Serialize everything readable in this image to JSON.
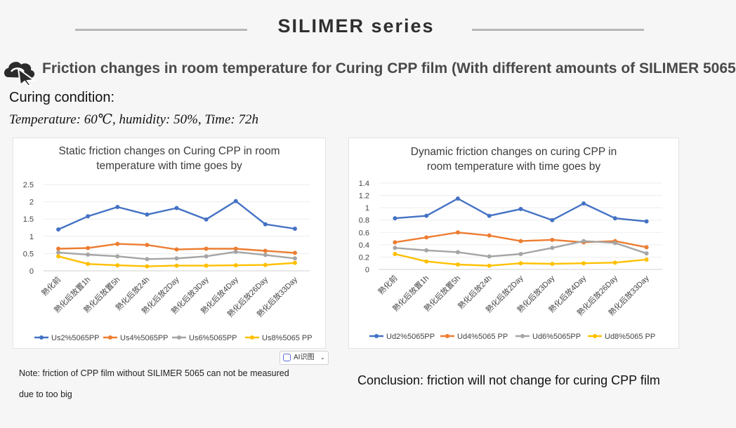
{
  "header": {
    "series_title": "SILIMER series"
  },
  "section": {
    "title": "Friction changes in room temperature for Curing CPP film (With different amounts of SILIMER 5065",
    "icon": "cursor-cloud-icon"
  },
  "curing": {
    "label": "Curing condition:",
    "condition": "Temperature: 60℃, humidity: 50%, Time: 72h"
  },
  "ai_chip": {
    "label": "AI识图",
    "caret": "⌄"
  },
  "notes": {
    "line1": "Note: friction of CPP film without SILIMER 5065 can not be measured",
    "line2": "due to too big"
  },
  "conclusion": "Conclusion: friction will not change for curing CPP film",
  "chart_data": [
    {
      "type": "line",
      "title": "Static friction changes on Curing CPP in room temperature with time goes by",
      "title_lines": [
        "Static friction changes on Curing CPP in room",
        "temperature with time goes by"
      ],
      "categories": [
        "熟化前",
        "熟化后放置1h",
        "熟化后放置5h",
        "熟化后放24h",
        "熟化后放2Day",
        "熟化后放3Day",
        "熟化后放4Day",
        "熟化后放26Day",
        "熟化后放33Day"
      ],
      "ylim": [
        0,
        2.5
      ],
      "yticks": [
        "0",
        "0.5",
        "1",
        "1.5",
        "2",
        "2.5"
      ],
      "series": [
        {
          "name": "Us2%5065PP",
          "color": "#4472c4",
          "values": [
            1.2,
            1.58,
            1.85,
            1.63,
            1.82,
            1.49,
            2.02,
            1.35,
            1.22
          ]
        },
        {
          "name": "Us4%5065PP",
          "color": "#ed7d31",
          "values": [
            0.64,
            0.66,
            0.78,
            0.75,
            0.62,
            0.64,
            0.64,
            0.58,
            0.52
          ]
        },
        {
          "name": "Us6%5065PP",
          "color": "#a5a5a5",
          "values": [
            0.53,
            0.47,
            0.42,
            0.34,
            0.36,
            0.42,
            0.55,
            0.46,
            0.36
          ]
        },
        {
          "name": "Us8%5065 PP",
          "color": "#ffc000",
          "values": [
            0.42,
            0.2,
            0.16,
            0.13,
            0.15,
            0.15,
            0.16,
            0.17,
            0.23
          ]
        }
      ]
    },
    {
      "type": "line",
      "title": "Dynamic friction changes on curing CPP in room temperature with time goes by",
      "title_lines": [
        "Dynamic friction changes on curing CPP in",
        "room temperature with time goes by"
      ],
      "categories": [
        "熟化前",
        "熟化后放置1h",
        "熟化后放置5h",
        "熟化后放24h",
        "熟化后放2Day",
        "熟化后放3Day",
        "熟化后放4Day",
        "熟化后放26Day",
        "熟化后放33Day"
      ],
      "ylim": [
        0,
        1.4
      ],
      "yticks": [
        "0",
        "0.2",
        "0.4",
        "0.6",
        "0.8",
        "1",
        "1.2",
        "1.4"
      ],
      "series": [
        {
          "name": "Ud2%5065PP",
          "color": "#4472c4",
          "values": [
            0.83,
            0.87,
            1.15,
            0.87,
            0.98,
            0.8,
            1.07,
            0.83,
            0.78
          ]
        },
        {
          "name": "Ud4%5065 PP",
          "color": "#ed7d31",
          "values": [
            0.44,
            0.52,
            0.6,
            0.55,
            0.46,
            0.48,
            0.44,
            0.46,
            0.36
          ]
        },
        {
          "name": "Ud6%5065PP",
          "color": "#a5a5a5",
          "values": [
            0.35,
            0.31,
            0.28,
            0.21,
            0.25,
            0.35,
            0.46,
            0.43,
            0.26
          ]
        },
        {
          "name": "Ud8%5065 PP",
          "color": "#ffc000",
          "values": [
            0.25,
            0.13,
            0.08,
            0.06,
            0.1,
            0.09,
            0.1,
            0.11,
            0.16
          ]
        }
      ]
    }
  ]
}
